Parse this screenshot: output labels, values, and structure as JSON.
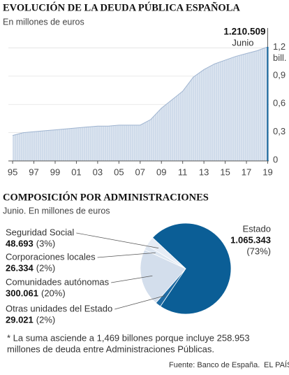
{
  "chart_data": [
    {
      "type": "area",
      "title": "EVOLUCIÓN DE LA DEUDA PÚBLICA ESPAÑOLA",
      "subtitle": "En millones de euros",
      "x": [
        1995,
        1996,
        1997,
        1998,
        1999,
        2000,
        2001,
        2002,
        2003,
        2004,
        2005,
        2006,
        2007,
        2008,
        2009,
        2010,
        2011,
        2012,
        2013,
        2014,
        2015,
        2016,
        2017,
        2018,
        2019
      ],
      "values": [
        0.27,
        0.3,
        0.31,
        0.32,
        0.33,
        0.34,
        0.35,
        0.36,
        0.37,
        0.37,
        0.38,
        0.38,
        0.38,
        0.44,
        0.56,
        0.65,
        0.74,
        0.89,
        0.97,
        1.03,
        1.07,
        1.11,
        1.14,
        1.17,
        1.210509
      ],
      "color": "#cfdbea",
      "highlight_color": "#0b5e96",
      "xlim": [
        1994.6,
        2019.1
      ],
      "ylim": [
        0,
        1.3
      ],
      "xticks": [
        {
          "value": 1995,
          "label": "95"
        },
        {
          "value": 1997,
          "label": "97"
        },
        {
          "value": 1999,
          "label": "99"
        },
        {
          "value": 2001,
          "label": "01"
        },
        {
          "value": 2003,
          "label": "03"
        },
        {
          "value": 2005,
          "label": "05"
        },
        {
          "value": 2007,
          "label": "07"
        },
        {
          "value": 2009,
          "label": "09"
        },
        {
          "value": 2011,
          "label": "11"
        },
        {
          "value": 2013,
          "label": "13"
        },
        {
          "value": 2015,
          "label": "15"
        },
        {
          "value": 2017,
          "label": "17"
        },
        {
          "value": 2019,
          "label": "19"
        }
      ],
      "yticks": [
        0,
        {
          "value": 0.3,
          "label": "0,3"
        },
        {
          "value": 0.6,
          "label": "0,6"
        },
        {
          "value": 0.9,
          "label": "0,9"
        },
        {
          "value": 1.2,
          "label": "1,2"
        }
      ],
      "y_unit": "bill.",
      "annotation": {
        "text": "1.210.509",
        "note": "Junio"
      }
    },
    {
      "type": "pie",
      "title": "COMPOSICIÓN POR ADMINISTRACIONES",
      "subtitle": "Junio. En millones de euros",
      "categories": [
        "Estado",
        "Otras unidades del Estado",
        "Comunidades autónomas",
        "Corporaciones locales",
        "Seguridad Social"
      ],
      "values": [
        1065343,
        29021,
        300061,
        26334,
        48693
      ],
      "value_labels": [
        "1.065.343",
        "29.021",
        "300.061",
        "26.334",
        "48.693"
      ],
      "percent_labels": [
        "(73%)",
        "(2%)",
        "(20%)",
        "(2%)",
        "(3%)"
      ],
      "colors": [
        "#0b5e96",
        "#1f6ba3",
        "#d3deec",
        "#dde6f1",
        "#e6ecf5"
      ],
      "footnote": [
        "* La suma asciende a 1,469 billones porque incluye 258.953",
        "millones de deuda entre Administraciones Públicas."
      ]
    }
  ],
  "source": "Fuente: Banco de España.",
  "credit": "EL PAÍS"
}
